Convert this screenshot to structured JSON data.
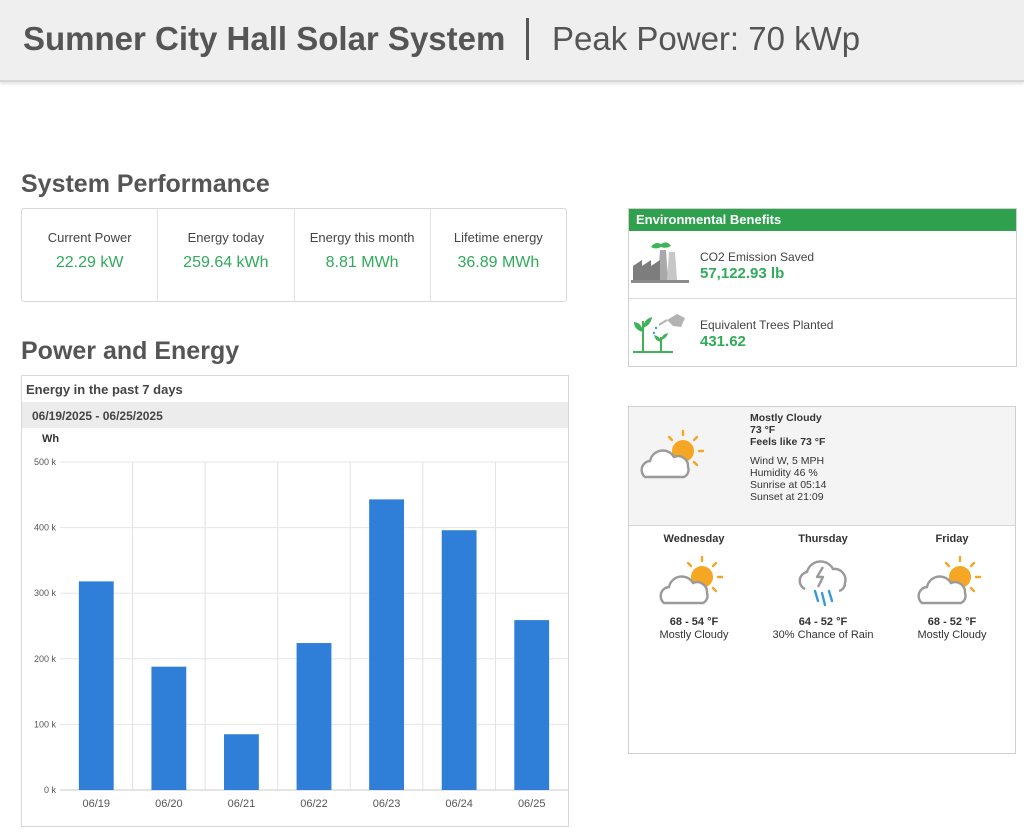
{
  "header": {
    "title": "Sumner City Hall Solar System",
    "peak_power": "Peak Power: 70 kWp"
  },
  "performance": {
    "title": "System Performance",
    "metrics": [
      {
        "label": "Current Power",
        "value": "22.29 kW"
      },
      {
        "label": "Energy today",
        "value": "259.64 kWh"
      },
      {
        "label": "Energy this month",
        "value": "8.81 MWh"
      },
      {
        "label": "Lifetime energy",
        "value": "36.89 MWh"
      }
    ]
  },
  "environment": {
    "title": "Environmental Benefits",
    "items": [
      {
        "label": "CO2 Emission Saved",
        "value": "57,122.93 lb",
        "icon": "factory-icon"
      },
      {
        "label": "Equivalent Trees Planted",
        "value": "431.62",
        "icon": "tree-watering-icon"
      }
    ]
  },
  "power_energy": {
    "title": "Power and Energy",
    "chart_header": "Energy in the past 7 days",
    "date_range": "06/19/2025 - 06/25/2025"
  },
  "chart_data": {
    "type": "bar",
    "title": "Energy in the past 7 days",
    "subtitle": "06/19/2025 - 06/25/2025",
    "ylabel": "Wh",
    "categories": [
      "06/19",
      "06/20",
      "06/21",
      "06/22",
      "06/23",
      "06/24",
      "06/25"
    ],
    "values": [
      318000,
      188000,
      85000,
      224000,
      443000,
      396000,
      259000
    ],
    "ylim": [
      0,
      500000
    ],
    "yticks": [
      0,
      100000,
      200000,
      300000,
      400000,
      500000
    ],
    "ytick_labels": [
      "0 k",
      "100 k",
      "200 k",
      "300 k",
      "400 k",
      "500 k"
    ],
    "color": "#2f7ed8",
    "grid": true,
    "legend": "none"
  },
  "weather": {
    "current": {
      "condition": "Mostly Cloudy",
      "temp": "73 °F",
      "feels_like": "Feels like 73 °F",
      "wind": "Wind W, 5 MPH",
      "humidity": "Humidity 46 %",
      "sunrise": "Sunrise at 05:14",
      "sunset": "Sunset at 21:09",
      "icon": "partly-cloudy-icon"
    },
    "forecast": [
      {
        "day": "Wednesday",
        "temp": "68 - 54 °F",
        "condition": "Mostly Cloudy",
        "icon": "partly-cloudy-icon"
      },
      {
        "day": "Thursday",
        "temp": "64 - 52 °F",
        "condition": "30% Chance of Rain",
        "icon": "thunderstorm-rain-icon"
      },
      {
        "day": "Friday",
        "temp": "68 - 52 °F",
        "condition": "Mostly Cloudy",
        "icon": "partly-cloudy-icon"
      }
    ]
  },
  "colors": {
    "accent_green": "#2fab5a",
    "env_header_green": "#2fa14e",
    "bar_blue": "#2f7ed8",
    "sun_orange": "#f5a623",
    "cloud_gray": "#9a9a9a",
    "rain_blue": "#3a9ad9"
  }
}
